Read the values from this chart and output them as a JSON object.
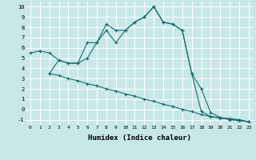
{
  "xlabel": "Humidex (Indice chaleur)",
  "bg_color": "#c8e8e8",
  "line_color": "#1a6b6b",
  "grid_color": "#ffffff",
  "xlim": [
    -0.5,
    23.5
  ],
  "ylim": [
    -1.5,
    10.5
  ],
  "xticks": [
    0,
    1,
    2,
    3,
    4,
    5,
    6,
    7,
    8,
    9,
    10,
    11,
    12,
    13,
    14,
    15,
    16,
    17,
    18,
    19,
    20,
    21,
    22,
    23
  ],
  "yticks": [
    -1,
    0,
    1,
    2,
    3,
    4,
    5,
    6,
    7,
    8,
    9,
    10
  ],
  "line1_x": [
    0,
    1,
    2,
    3,
    4,
    5,
    6,
    7,
    8,
    9,
    10,
    11,
    12,
    13,
    14,
    15,
    16,
    17,
    18,
    19,
    20,
    21,
    22,
    23
  ],
  "line1_y": [
    5.5,
    5.7,
    5.5,
    4.8,
    4.5,
    4.5,
    6.5,
    6.5,
    7.7,
    6.5,
    7.7,
    8.5,
    9.0,
    10.0,
    8.5,
    8.3,
    7.7,
    3.5,
    2.0,
    -0.3,
    -0.8,
    -1.0,
    -1.1,
    -1.2
  ],
  "line2_x": [
    2,
    3,
    4,
    5,
    6,
    7,
    8,
    9,
    10,
    11,
    12,
    13,
    14,
    15,
    16,
    17,
    18,
    19,
    20,
    21,
    22,
    23
  ],
  "line2_y": [
    3.5,
    3.3,
    3.0,
    2.8,
    2.5,
    2.3,
    2.0,
    1.8,
    1.5,
    1.3,
    1.0,
    0.8,
    0.5,
    0.3,
    0.0,
    -0.2,
    -0.5,
    -0.7,
    -0.8,
    -0.9,
    -1.0,
    -1.2
  ],
  "line3_x": [
    2,
    3,
    4,
    5,
    6,
    7,
    8,
    9,
    10,
    11,
    12,
    13,
    14,
    15,
    16,
    17,
    18,
    19,
    20,
    21,
    22,
    23
  ],
  "line3_y": [
    3.5,
    4.8,
    4.5,
    4.5,
    5.0,
    6.5,
    8.3,
    7.7,
    7.7,
    8.5,
    9.0,
    10.0,
    8.5,
    8.3,
    7.7,
    3.5,
    -0.2,
    -0.7,
    -0.85,
    -0.95,
    -1.05,
    -1.2
  ]
}
